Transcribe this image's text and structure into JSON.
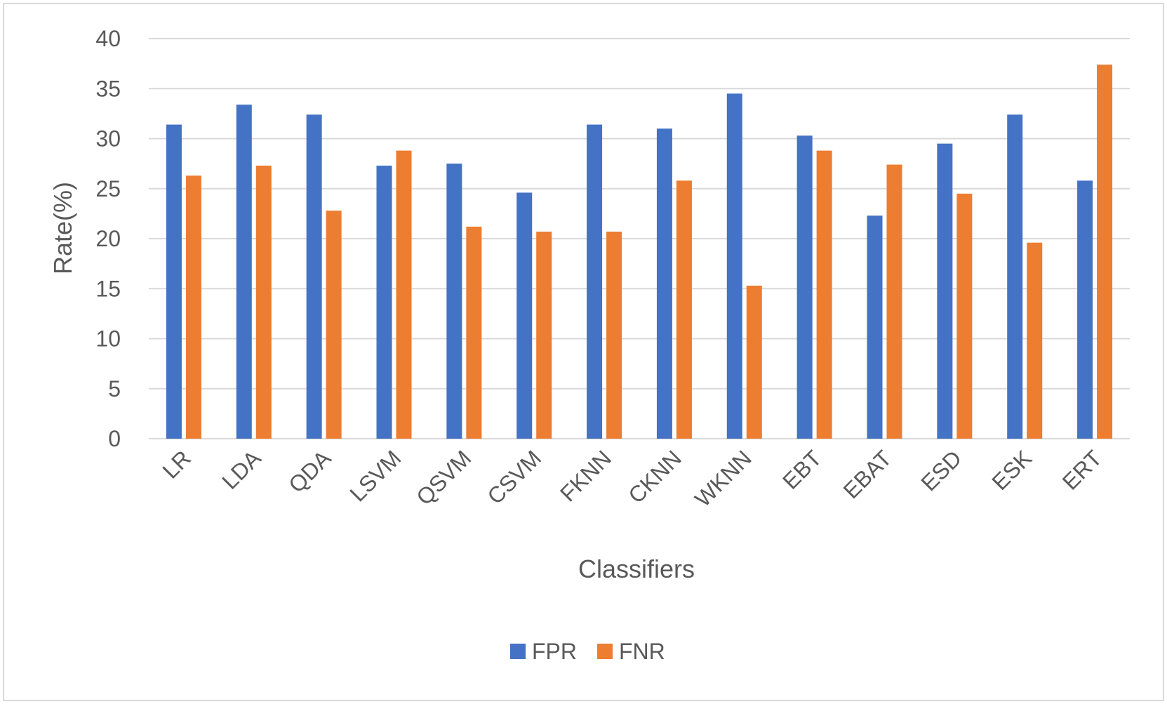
{
  "chart_data": {
    "type": "bar",
    "title": "",
    "xlabel": "Classifiers",
    "ylabel": "Rate(%)",
    "ylim": [
      0,
      40
    ],
    "yticks": [
      0,
      5,
      10,
      15,
      20,
      25,
      30,
      35,
      40
    ],
    "grid": true,
    "legend_position": "bottom",
    "categories": [
      "LR",
      "LDA",
      "QDA",
      "LSVM",
      "QSVM",
      "CSVM",
      "FKNN",
      "CKNN",
      "WKNN",
      "EBT",
      "EBAT",
      "ESD",
      "ESK",
      "ERT"
    ],
    "series": [
      {
        "name": "FPR",
        "color": "#4472c4",
        "values": [
          31.4,
          33.4,
          32.4,
          27.3,
          27.5,
          24.6,
          31.4,
          31.0,
          34.5,
          30.3,
          22.3,
          29.5,
          32.4,
          25.8
        ]
      },
      {
        "name": "FNR",
        "color": "#ed7d31",
        "values": [
          26.3,
          27.3,
          22.8,
          28.8,
          21.2,
          20.7,
          20.7,
          25.8,
          15.3,
          28.8,
          27.4,
          24.5,
          19.6,
          37.4
        ]
      }
    ]
  }
}
